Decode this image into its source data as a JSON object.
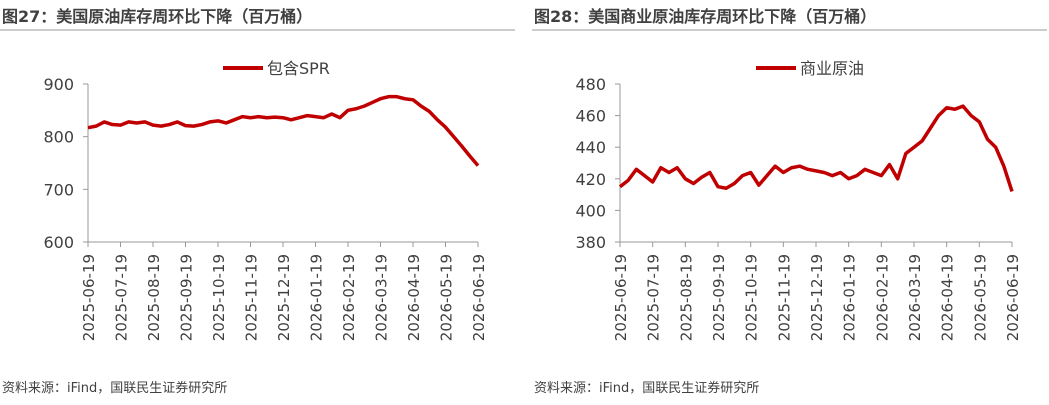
{
  "chart_data": [
    {
      "type": "line",
      "title": "图27：美国原油库存周环比下降（百万桶）",
      "source": "资料来源：iFind，国联民生证券研究所",
      "categories": [
        "2025-06-19",
        null,
        null,
        null,
        "2025-07-19",
        null,
        null,
        null,
        "2025-08-19",
        null,
        null,
        null,
        "2025-09-19",
        null,
        null,
        null,
        "2025-10-19",
        null,
        null,
        null,
        "2025-11-19",
        null,
        null,
        null,
        "2025-12-19",
        null,
        null,
        null,
        "2026-01-19",
        null,
        null,
        null,
        "2026-02-19",
        null,
        null,
        null,
        "2026-03-19",
        null,
        null,
        null,
        "2026-04-19",
        null,
        null,
        null,
        "2026-05-19",
        null,
        null,
        null,
        "2026-06-19"
      ],
      "series": [
        {
          "name": "包含SPR",
          "color": "#c00000",
          "values": [
            817,
            820,
            828,
            823,
            822,
            828,
            826,
            828,
            822,
            820,
            823,
            828,
            821,
            820,
            823,
            828,
            830,
            826,
            832,
            838,
            836,
            838,
            836,
            837,
            836,
            832,
            836,
            840,
            838,
            836,
            843,
            836,
            850,
            853,
            858,
            865,
            872,
            876,
            876,
            872,
            870,
            858,
            848,
            832,
            818,
            800,
            782,
            763,
            745
          ]
        }
      ],
      "ylim": [
        600,
        900
      ],
      "yticks": [
        600,
        700,
        800,
        900
      ],
      "grid": false
    },
    {
      "type": "line",
      "title": "图28：美国商业原油库存周环比下降（百万桶）",
      "source": "资料来源：iFind，国联民生证券研究所",
      "categories": [
        "2025-06-19",
        null,
        null,
        null,
        "2025-07-19",
        null,
        null,
        null,
        "2025-08-19",
        null,
        null,
        null,
        "2025-09-19",
        null,
        null,
        null,
        "2025-10-19",
        null,
        null,
        null,
        "2025-11-19",
        null,
        null,
        null,
        "2025-12-19",
        null,
        null,
        null,
        "2026-01-19",
        null,
        null,
        null,
        "2026-02-19",
        null,
        null,
        null,
        "2026-03-19",
        null,
        null,
        null,
        "2026-04-19",
        null,
        null,
        null,
        "2026-05-19",
        null,
        null,
        null,
        "2026-06-19"
      ],
      "series": [
        {
          "name": "商业原油",
          "color": "#c00000",
          "values": [
            415,
            419,
            426,
            422,
            418,
            427,
            424,
            427,
            420,
            417,
            421,
            424,
            415,
            414,
            417,
            422,
            424,
            416,
            422,
            428,
            424,
            427,
            428,
            426,
            425,
            424,
            422,
            424,
            420,
            422,
            426,
            424,
            422,
            429,
            420,
            436,
            440,
            444,
            452,
            460,
            465,
            464,
            466,
            460,
            456,
            445,
            440,
            428,
            412
          ]
        }
      ],
      "ylim": [
        380,
        480
      ],
      "yticks": [
        380,
        400,
        420,
        440,
        460,
        480
      ],
      "grid": false
    }
  ]
}
